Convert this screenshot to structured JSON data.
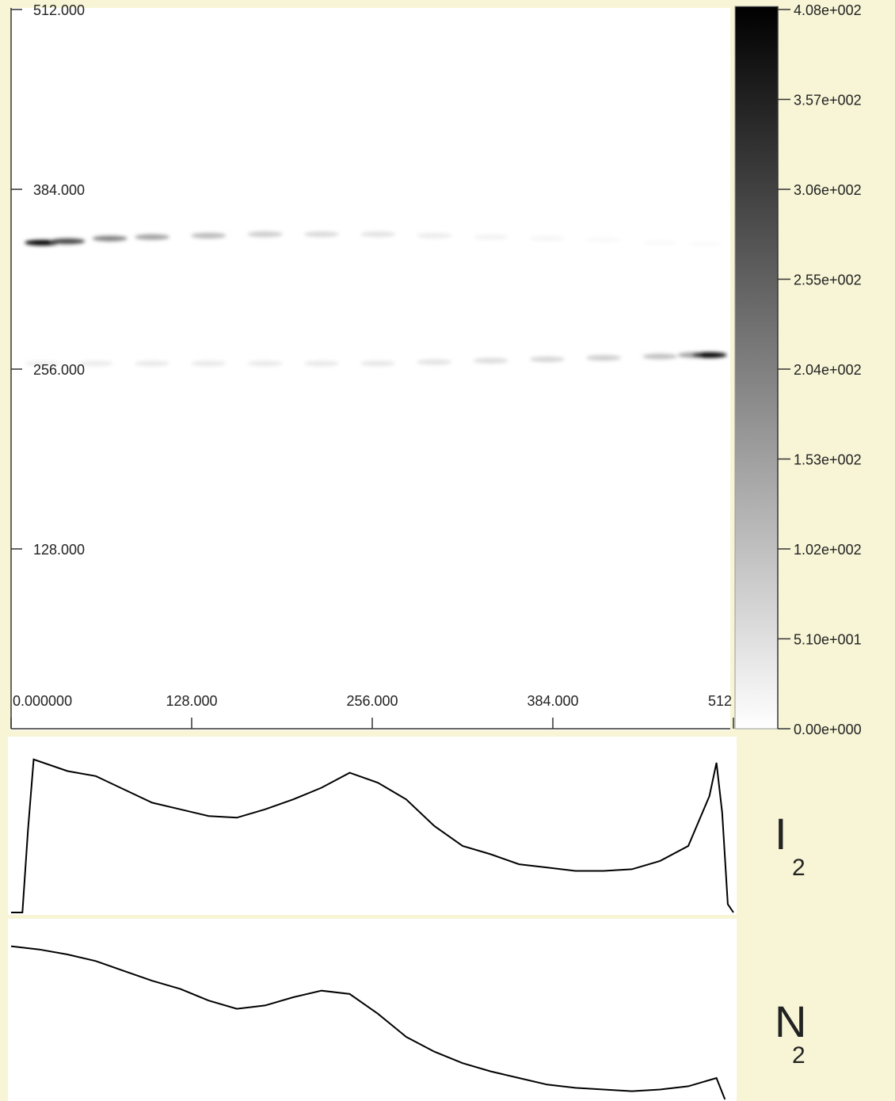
{
  "chart_data": [
    {
      "type": "image",
      "xlim": [
        0,
        512
      ],
      "ylim": [
        0,
        512
      ],
      "xticks": [
        {
          "value": 0,
          "label": "0.000000"
        },
        {
          "value": 128,
          "label": "128.000"
        },
        {
          "value": 256,
          "label": "256.000"
        },
        {
          "value": 384,
          "label": "384.000"
        },
        512
      ],
      "yticks": [
        {
          "value": 128,
          "label": "128.000"
        },
        {
          "value": 256,
          "label": "256.000"
        },
        {
          "value": 384,
          "label": "384.000"
        },
        {
          "value": 512,
          "label": "512.000"
        }
      ],
      "colormap": [
        "#ffffff",
        "#000000"
      ],
      "clim": [
        0,
        408
      ],
      "cticks": [
        {
          "value": 0,
          "label": "0.00e+000"
        },
        {
          "value": 51,
          "label": "5.10e+001"
        },
        {
          "value": 102,
          "label": "1.02e+002"
        },
        {
          "value": 153,
          "label": "1.53e+002"
        },
        {
          "value": 204,
          "label": "2.04e+002"
        },
        {
          "value": 255,
          "label": "2.55e+002"
        },
        {
          "value": 306,
          "label": "3.06e+002"
        },
        {
          "value": 357,
          "label": "3.57e+002"
        },
        {
          "value": 408,
          "label": "4.08e+002"
        }
      ],
      "streaks": [
        {
          "x": [
            22,
            40,
            70,
            100,
            140,
            180,
            220,
            260,
            300,
            340,
            380,
            420,
            460,
            492
          ],
          "y": [
            346,
            347,
            349,
            350,
            351,
            352,
            352,
            352,
            351,
            350,
            349,
            348,
            346,
            345
          ],
          "values": [
            400,
            300,
            200,
            150,
            110,
            80,
            60,
            45,
            30,
            20,
            14,
            10,
            8,
            6
          ]
        },
        {
          "x": [
            22,
            60,
            100,
            140,
            180,
            220,
            260,
            300,
            340,
            380,
            420,
            460,
            485,
            495
          ],
          "y": [
            260,
            260,
            260,
            260,
            260,
            260,
            260,
            261,
            262,
            263,
            264,
            265,
            266,
            266
          ],
          "values": [
            25,
            30,
            35,
            35,
            35,
            35,
            38,
            45,
            55,
            65,
            80,
            100,
            150,
            400
          ]
        }
      ]
    },
    {
      "type": "line",
      "label": "I",
      "label_subscript": "2",
      "color": "#000000",
      "xlim": [
        0,
        512
      ],
      "ylim": [
        0,
        100
      ],
      "x": [
        0,
        8,
        12,
        16,
        40,
        60,
        80,
        100,
        120,
        140,
        160,
        180,
        200,
        220,
        240,
        260,
        280,
        300,
        320,
        340,
        360,
        380,
        400,
        420,
        440,
        460,
        480,
        495,
        500,
        504,
        508,
        512
      ],
      "values": [
        0,
        0,
        50,
        92,
        85,
        82,
        74,
        66,
        62,
        58,
        57,
        62,
        68,
        75,
        84,
        78,
        68,
        52,
        40,
        35,
        29,
        27,
        25,
        25,
        26,
        31,
        40,
        70,
        90,
        60,
        5,
        0
      ]
    },
    {
      "type": "line",
      "label": "N",
      "label_subscript": "2",
      "color": "#000000",
      "xlim": [
        0,
        512
      ],
      "ylim": [
        0,
        100
      ],
      "x": [
        0,
        20,
        40,
        60,
        80,
        100,
        120,
        140,
        160,
        180,
        200,
        220,
        240,
        260,
        280,
        300,
        320,
        340,
        360,
        380,
        400,
        420,
        440,
        460,
        480,
        500,
        506
      ],
      "values": [
        93,
        91,
        88,
        84,
        78,
        72,
        67,
        60,
        55,
        57,
        62,
        66,
        64,
        52,
        38,
        29,
        22,
        17,
        13,
        9,
        7,
        6,
        5,
        6,
        8,
        13,
        0
      ]
    }
  ]
}
